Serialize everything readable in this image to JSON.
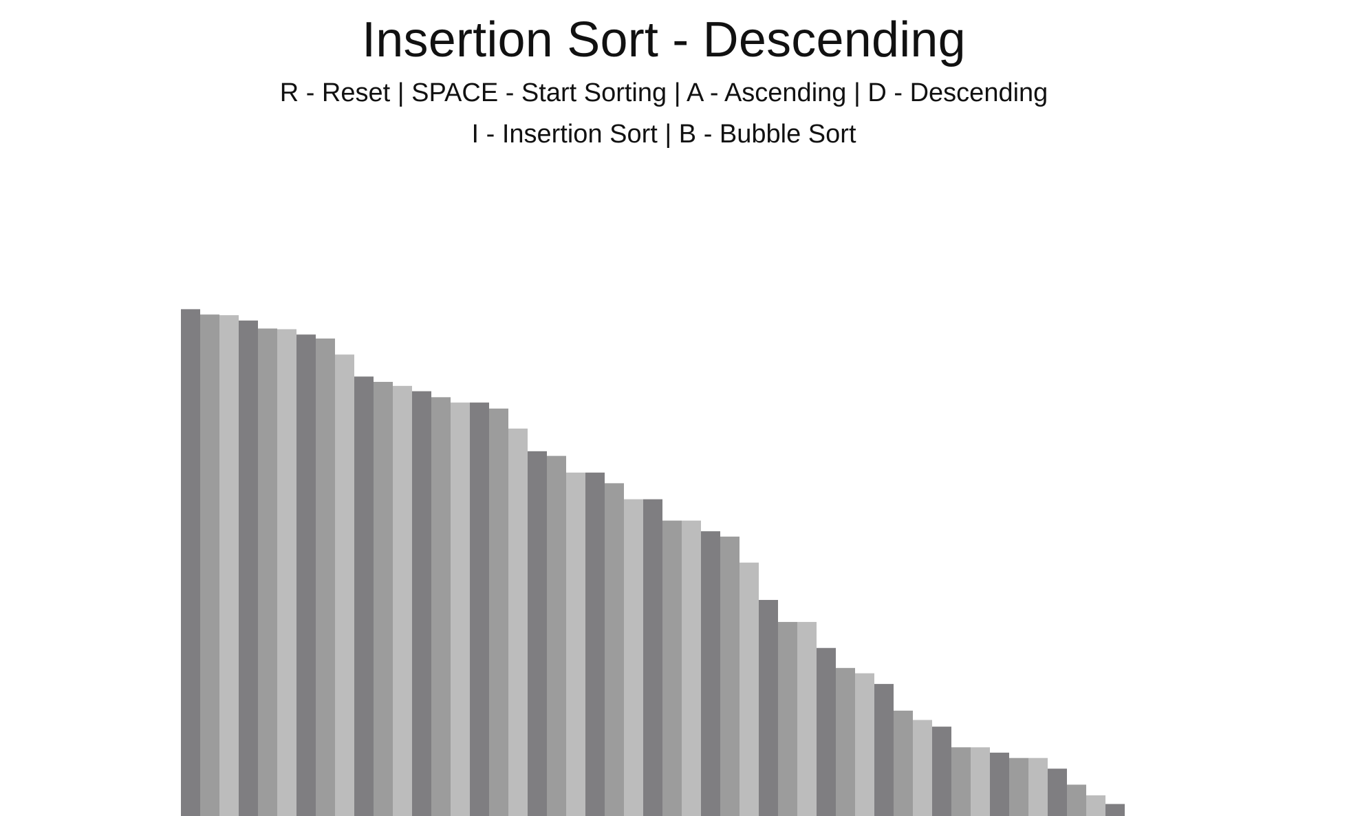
{
  "app": {
    "title": "Insertion Sort - Descending",
    "controls_line1": "R - Reset | SPACE - Start Sorting | A - Ascending | D - Descending",
    "controls_line2": "I - Insertion Sort | B - Bubble Sort"
  },
  "colors": {
    "background": "#ffffff",
    "bar_dark": "#7f7e81",
    "bar_mid": "#9c9c9c",
    "bar_light": "#bcbcbc",
    "text": "#111111"
  },
  "chart_data": {
    "type": "bar",
    "title": "",
    "xlabel": "",
    "ylabel": "",
    "values": [
      480,
      472,
      471,
      463,
      451,
      450,
      442,
      436,
      412,
      379,
      371,
      365,
      357,
      348,
      340,
      340,
      331,
      301,
      267,
      260,
      235,
      235,
      219,
      195,
      195,
      163,
      163,
      147,
      139,
      100,
      44,
      11,
      11,
      -28,
      -58,
      -66,
      -82,
      -122,
      -136,
      -146,
      -177,
      -177,
      -185,
      -193,
      -193,
      -209,
      -233,
      -249,
      -262
    ],
    "ylim": [
      -280,
      500
    ],
    "color_cycle": [
      "bar_dark",
      "bar_mid",
      "bar_light"
    ]
  }
}
